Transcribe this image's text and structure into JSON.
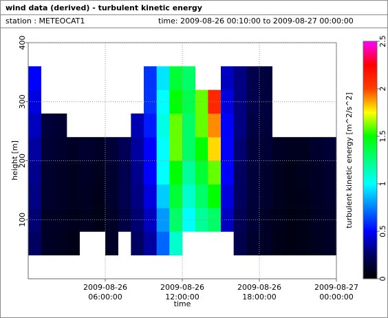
{
  "header": {
    "title": "wind data (derived) - turbulent kinetic energy",
    "station": "station : METEOCAT1",
    "period": "time: 2009-08-26 00:10:00 to 2009-08-27 00:00:00"
  },
  "chart_data": {
    "type": "heatmap",
    "x_label": "time",
    "y_label": "height [m]",
    "color_label": "turbulent kinetic energy [m^2/s^2]",
    "x": [
      "2009-08-26 00:30:00",
      "2009-08-26 01:30:00",
      "2009-08-26 02:30:00",
      "2009-08-26 03:30:00",
      "2009-08-26 04:30:00",
      "2009-08-26 05:30:00",
      "2009-08-26 06:30:00",
      "2009-08-26 07:30:00",
      "2009-08-26 08:30:00",
      "2009-08-26 09:30:00",
      "2009-08-26 10:30:00",
      "2009-08-26 11:30:00",
      "2009-08-26 12:30:00",
      "2009-08-26 13:30:00",
      "2009-08-26 14:30:00",
      "2009-08-26 15:30:00",
      "2009-08-26 16:30:00",
      "2009-08-26 17:30:00",
      "2009-08-26 18:30:00",
      "2009-08-26 19:30:00",
      "2009-08-26 20:30:00",
      "2009-08-26 21:30:00",
      "2009-08-26 22:30:00",
      "2009-08-26 23:30:00"
    ],
    "y_bins": [
      40,
      80,
      120,
      160,
      200,
      240,
      280,
      320,
      360
    ],
    "values": [
      [
        0.25,
        0.28,
        0.3,
        0.32,
        0.35,
        0.4,
        0.45,
        0.5
      ],
      [
        0.1,
        0.1,
        0.12,
        0.12,
        0.14,
        0.15,
        null,
        null
      ],
      [
        0.08,
        0.09,
        0.1,
        0.1,
        0.12,
        0.13,
        null,
        null
      ],
      [
        0.06,
        0.07,
        0.08,
        0.08,
        0.1,
        null,
        null,
        null
      ],
      [
        null,
        0.08,
        0.09,
        0.1,
        0.12,
        null,
        null,
        null
      ],
      [
        null,
        0.06,
        0.07,
        0.08,
        0.1,
        null,
        null,
        null
      ],
      [
        0.1,
        0.1,
        0.12,
        0.12,
        0.14,
        null,
        null,
        null
      ],
      [
        null,
        0.18,
        0.2,
        0.2,
        0.22,
        null,
        null,
        null
      ],
      [
        0.25,
        0.28,
        0.3,
        0.32,
        0.35,
        0.38,
        null,
        null
      ],
      [
        0.35,
        0.4,
        0.45,
        0.5,
        0.5,
        0.55,
        0.6,
        0.6
      ],
      [
        0.7,
        0.8,
        0.9,
        1.0,
        1.0,
        1.05,
        1.0,
        0.95
      ],
      [
        1.1,
        1.3,
        1.4,
        1.5,
        1.6,
        1.6,
        1.5,
        1.4
      ],
      [
        null,
        1.0,
        1.1,
        1.2,
        1.3,
        1.3,
        1.35,
        1.3
      ],
      [
        null,
        1.2,
        1.3,
        1.4,
        1.5,
        1.6,
        1.6,
        null
      ],
      [
        null,
        1.3,
        1.5,
        1.6,
        1.8,
        1.9,
        2.1,
        null
      ],
      [
        null,
        0.4,
        0.45,
        0.5,
        0.5,
        0.5,
        0.45,
        0.4
      ],
      [
        0.2,
        0.22,
        0.25,
        0.25,
        0.28,
        0.3,
        0.3,
        0.3
      ],
      [
        0.12,
        0.14,
        0.15,
        0.15,
        0.16,
        0.18,
        0.2,
        0.2
      ],
      [
        0.1,
        0.1,
        0.12,
        0.12,
        0.14,
        0.15,
        0.16,
        0.16
      ],
      [
        0.06,
        0.07,
        0.08,
        0.08,
        0.1,
        null,
        null,
        null
      ],
      [
        0.05,
        0.05,
        0.06,
        0.06,
        0.08,
        null,
        null,
        null
      ],
      [
        0.06,
        0.06,
        0.07,
        0.08,
        0.08,
        null,
        null,
        null
      ],
      [
        0.08,
        0.09,
        0.1,
        0.1,
        0.12,
        null,
        null,
        null
      ],
      [
        0.1,
        0.1,
        0.12,
        0.12,
        0.14,
        null,
        null,
        null
      ]
    ],
    "xlim": [
      "2009-08-26 00:00:00",
      "2009-08-27 00:00:00"
    ],
    "xticks": [
      "2009-08-26 06:00:00",
      "2009-08-26 12:00:00",
      "2009-08-26 18:00:00",
      "2009-08-27 00:00:00"
    ],
    "ylim": [
      0,
      400
    ],
    "yticks": [
      100,
      200,
      300,
      400
    ],
    "clim": [
      0,
      2.5
    ],
    "cticks": [
      0,
      0.5,
      1,
      1.5,
      2,
      2.5
    ],
    "colormap": [
      "#000000",
      "#000060",
      "#0000ff",
      "#0080ff",
      "#00ffff",
      "#00ff80",
      "#00ff00",
      "#ffff00",
      "#ff4000",
      "#ff0000",
      "#ff00ff"
    ],
    "grid": true
  }
}
